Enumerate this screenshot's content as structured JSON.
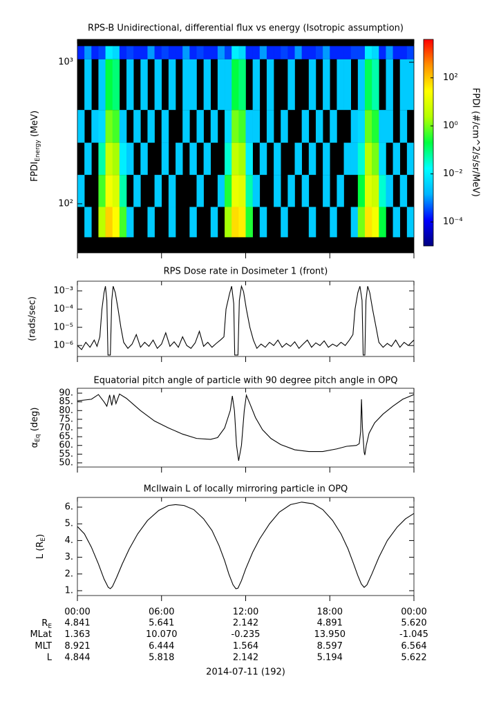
{
  "chart_data": [
    {
      "type": "heatmap",
      "title": "RPS-B  Unidirectional, differential flux vs energy (Isotropic assumption)",
      "ylabel": [
        "FPDI",
        "Energy",
        " (MeV)"
      ],
      "xlim": [
        0,
        24
      ],
      "xticks": [
        0,
        6,
        12,
        18,
        24
      ],
      "ylog": true,
      "ylim": [
        45,
        1450
      ],
      "yticks": [
        {
          "value": 100,
          "label": "10²"
        },
        {
          "value": 1000,
          "label": "10³"
        }
      ],
      "xbins": [
        0,
        0.5,
        1,
        1.5,
        2,
        2.5,
        3,
        3.5,
        4,
        4.5,
        5,
        5.5,
        6,
        6.5,
        7,
        7.5,
        8,
        8.5,
        9,
        9.5,
        10,
        10.5,
        11,
        11.5,
        12,
        12.5,
        13,
        13.5,
        14,
        14.5,
        15,
        15.5,
        16,
        16.5,
        17,
        17.5,
        18,
        18.5,
        19,
        19.5,
        20,
        20.5,
        21,
        21.5,
        22,
        22.5,
        23,
        23.5,
        24
      ],
      "ybins": [
        58,
        95,
        160,
        270,
        460,
        1050,
        1300
      ],
      "z": [
        [
          null,
          0.003,
          null,
          3,
          80,
          30,
          0.5,
          0.003,
          null,
          null,
          0.003,
          null,
          null,
          0.003,
          null,
          null,
          0.003,
          null,
          null,
          0.003,
          null,
          2,
          60,
          40,
          0.3,
          null,
          0.003,
          null,
          null,
          0.003,
          null,
          null,
          null,
          0.003,
          null,
          null,
          0.003,
          null,
          null,
          0.003,
          1,
          50,
          20,
          0.2,
          null,
          0.003,
          null,
          0.003
        ],
        [
          0.003,
          null,
          null,
          0.5,
          20,
          8,
          0.05,
          null,
          0.003,
          null,
          null,
          0.003,
          null,
          0.003,
          null,
          null,
          null,
          0.003,
          null,
          null,
          0.003,
          0.3,
          15,
          10,
          0.05,
          0.003,
          null,
          null,
          0.003,
          null,
          0.003,
          null,
          0.003,
          null,
          null,
          0.003,
          null,
          0.003,
          null,
          null,
          0.2,
          10,
          5,
          0.03,
          0.003,
          null,
          0.003,
          null
        ],
        [
          null,
          0.003,
          null,
          0.05,
          5,
          2,
          0.01,
          0.003,
          null,
          0.003,
          null,
          null,
          0.003,
          null,
          0.003,
          null,
          0.003,
          null,
          0.003,
          null,
          null,
          0.03,
          4,
          2,
          0.01,
          null,
          0.003,
          null,
          0.003,
          null,
          null,
          0.003,
          null,
          0.003,
          null,
          0.003,
          null,
          null,
          0.003,
          0.003,
          0.03,
          3,
          1,
          0.005,
          null,
          0.003,
          null,
          0.003
        ],
        [
          0.003,
          null,
          0.003,
          0.005,
          1,
          0.5,
          0.003,
          null,
          0.003,
          null,
          0.003,
          null,
          0.003,
          null,
          null,
          0.003,
          null,
          0.003,
          null,
          0.003,
          null,
          0.005,
          1,
          0.5,
          0.003,
          0.003,
          null,
          0.003,
          null,
          0.003,
          null,
          null,
          0.003,
          null,
          0.003,
          null,
          0.003,
          null,
          null,
          0.003,
          0.005,
          0.8,
          0.3,
          0.003,
          0.003,
          null,
          0.003,
          null
        ],
        [
          null,
          0.003,
          null,
          0.003,
          0.2,
          0.1,
          null,
          0.003,
          null,
          0.003,
          null,
          0.003,
          null,
          0.003,
          null,
          0.003,
          0.003,
          null,
          0.003,
          null,
          0.003,
          0.003,
          0.2,
          0.1,
          null,
          0.003,
          null,
          0.003,
          null,
          null,
          0.003,
          null,
          null,
          0.003,
          null,
          0.003,
          null,
          0.003,
          0.003,
          null,
          0.003,
          0.15,
          0.05,
          null,
          0.003,
          null,
          0.003,
          0.003
        ],
        [
          0.0002,
          0.001,
          0.0002,
          0.0003,
          0.01,
          0.005,
          0.0002,
          0.0003,
          0.0002,
          0.0002,
          0.001,
          0.0002,
          0.0003,
          0.0002,
          0.0002,
          0.001,
          0.0002,
          0.0003,
          0.0002,
          0.0002,
          0.001,
          0.0003,
          0.01,
          0.005,
          0.0002,
          0.0002,
          0.001,
          0.0002,
          0.0002,
          0.0003,
          0.0002,
          0.001,
          0.0002,
          0.0002,
          0.0003,
          0.001,
          0.0002,
          0.0002,
          0.0002,
          0.0003,
          0.0003,
          0.01,
          0.005,
          0.0002,
          0.001,
          0.0002,
          0.0002,
          0.0003
        ]
      ],
      "zlim": [
        1e-05,
        4000
      ],
      "zticks": [
        {
          "value": 0.0001,
          "label": "10⁻⁴"
        },
        {
          "value": 0.01,
          "label": "10⁻²"
        },
        {
          "value": 1,
          "label": "10⁰"
        },
        {
          "value": 100,
          "label": "10²"
        }
      ],
      "zlabel": "FPDI (#/cm^2/s/sr/MeV)",
      "colormap": [
        "#00007f",
        "#0000ff",
        "#00b4ff",
        "#00ffff",
        "#00ff40",
        "#b4ff00",
        "#ffff00",
        "#ff9000",
        "#ff0000"
      ],
      "background": "#000000"
    },
    {
      "type": "line",
      "title": "RPS  Dose rate in Dosimeter 1 (front)",
      "ylabel": "(rads/sec)",
      "xlim": [
        0,
        24
      ],
      "xticks": [
        0,
        6,
        12,
        18,
        24
      ],
      "ylog": true,
      "ylim": [
        2.5e-07,
        0.0034
      ],
      "yticks": [
        {
          "value": 1e-06,
          "label": "10⁻⁶"
        },
        {
          "value": 1e-05,
          "label": "10⁻⁵"
        },
        {
          "value": 0.0001,
          "label": "10⁻⁴"
        },
        {
          "value": 0.001,
          "label": "10⁻³"
        }
      ],
      "color": "#000000",
      "x": [
        0,
        0.3,
        0.6,
        0.9,
        1.2,
        1.4,
        1.6,
        1.75,
        1.9,
        2.0,
        2.1,
        2.18,
        2.35,
        2.45,
        2.55,
        2.7,
        2.9,
        3.1,
        3.3,
        3.6,
        3.9,
        4.2,
        4.5,
        4.8,
        5.1,
        5.4,
        5.7,
        6.0,
        6.3,
        6.6,
        6.9,
        7.2,
        7.5,
        7.8,
        8.1,
        8.4,
        8.7,
        9.0,
        9.3,
        9.6,
        9.9,
        10.2,
        10.45,
        10.6,
        10.85,
        11.0,
        11.15,
        11.22,
        11.45,
        11.55,
        11.7,
        11.85,
        12.05,
        12.3,
        12.55,
        12.8,
        13.1,
        13.4,
        13.7,
        14.0,
        14.3,
        14.6,
        14.9,
        15.2,
        15.5,
        15.8,
        16.1,
        16.4,
        16.7,
        17.0,
        17.3,
        17.6,
        17.9,
        18.2,
        18.5,
        18.8,
        19.1,
        19.4,
        19.65,
        19.8,
        20.0,
        20.15,
        20.3,
        20.38,
        20.5,
        20.58,
        20.7,
        20.85,
        21.05,
        21.3,
        21.5,
        21.8,
        22.1,
        22.4,
        22.7,
        23.0,
        23.3,
        23.6,
        24.0
      ],
      "values": [
        1e-06,
        6e-07,
        1.5e-06,
        8e-07,
        2e-06,
        9e-07,
        3e-06,
        0.0001,
        0.0008,
        0.0018,
        0.0003,
        3e-07,
        3e-07,
        0.0003,
        0.0018,
        0.0008,
        0.0001,
        1e-05,
        1.5e-06,
        7e-07,
        1.2e-06,
        4e-06,
        8e-07,
        1.5e-06,
        9e-07,
        2e-06,
        7e-07,
        1.2e-06,
        5e-06,
        9e-07,
        1.6e-06,
        8e-07,
        3e-06,
        1e-06,
        7e-07,
        1.4e-06,
        6e-06,
        9e-07,
        1.5e-06,
        8e-07,
        1.3e-06,
        2e-06,
        3e-06,
        0.0001,
        0.0007,
        0.0018,
        0.0002,
        3e-07,
        3e-07,
        0.0003,
        0.0018,
        0.0009,
        0.0001,
        1e-05,
        2e-06,
        7e-07,
        1.2e-06,
        8e-07,
        1.5e-06,
        1e-06,
        2e-06,
        8e-07,
        1.3e-06,
        9e-07,
        1.6e-06,
        7e-07,
        1.2e-06,
        2e-06,
        8e-07,
        1.4e-06,
        1e-06,
        1.8e-06,
        8e-07,
        1.2e-06,
        9e-07,
        1.5e-06,
        1e-06,
        2e-06,
        4e-06,
        0.0001,
        0.0008,
        0.0018,
        0.0003,
        3e-07,
        3e-07,
        0.0003,
        0.0018,
        0.0008,
        0.0001,
        1e-05,
        1.5e-06,
        8e-07,
        1.3e-06,
        9e-07,
        2e-06,
        8e-07,
        1.5e-06,
        1e-06,
        2e-06
      ]
    },
    {
      "type": "line",
      "title": "Equatorial pitch angle of particle with 90 degree pitch angle in OPQ",
      "ylabel": [
        "α",
        "Eq",
        " (deg)"
      ],
      "xlim": [
        0,
        24
      ],
      "xticks": [
        0,
        6,
        12,
        18,
        24
      ],
      "ylim": [
        47.6,
        92.8
      ],
      "yticks": [
        {
          "value": 50,
          "label": "50."
        },
        {
          "value": 55,
          "label": "55."
        },
        {
          "value": 60,
          "label": "60."
        },
        {
          "value": 65,
          "label": "65."
        },
        {
          "value": 70,
          "label": "70."
        },
        {
          "value": 75,
          "label": "75."
        },
        {
          "value": 80,
          "label": "80."
        },
        {
          "value": 85,
          "label": "85."
        },
        {
          "value": 90,
          "label": "90."
        }
      ],
      "color": "#000000",
      "x": [
        0,
        1.0,
        1.5,
        1.9,
        2.1,
        2.3,
        2.45,
        2.6,
        2.75,
        3.0,
        3.5,
        4.5,
        5.5,
        6.5,
        7.5,
        8.5,
        9.5,
        10.0,
        10.5,
        10.9,
        11.05,
        11.2,
        11.35,
        11.5,
        11.7,
        11.9,
        12.05,
        12.3,
        12.7,
        13.2,
        13.8,
        14.5,
        15.5,
        16.5,
        17.5,
        18.5,
        19.2,
        19.9,
        20.1,
        20.2,
        20.26,
        20.33,
        20.45,
        20.5,
        20.6,
        20.8,
        21.2,
        21.8,
        22.5,
        23.2,
        24
      ],
      "values": [
        85.6,
        86.5,
        89.2,
        85,
        82.5,
        89,
        83,
        89,
        84,
        89.5,
        87,
        80,
        74,
        70,
        66.5,
        64,
        63.5,
        64.5,
        70,
        80,
        88.4,
        80,
        60,
        51.2,
        60,
        80,
        88.8,
        84,
        76,
        69,
        64,
        60.5,
        57.5,
        56.5,
        56.5,
        58,
        59.5,
        60,
        61,
        68,
        86.5,
        70,
        56,
        54.5,
        60,
        67,
        73,
        78,
        82.5,
        86.5,
        89.2
      ]
    },
    {
      "type": "line",
      "title": "McIlwain L of locally mirroring particle in OPQ",
      "ylabel": [
        "L (R",
        "E",
        ")"
      ],
      "xlim": [
        0,
        24
      ],
      "xticks": [
        {
          "value": 0,
          "label": "00:00"
        },
        {
          "value": 6,
          "label": "06:00"
        },
        {
          "value": 12,
          "label": "12:00"
        },
        {
          "value": 18,
          "label": "18:00"
        },
        {
          "value": 24,
          "label": "00:00"
        }
      ],
      "ylim": [
        0.71,
        6.58
      ],
      "yticks": [
        {
          "value": 1,
          "label": "1."
        },
        {
          "value": 2,
          "label": "2."
        },
        {
          "value": 3,
          "label": "3."
        },
        {
          "value": 4,
          "label": "4."
        },
        {
          "value": 5,
          "label": "5."
        },
        {
          "value": 6,
          "label": "6."
        }
      ],
      "color": "#000000",
      "x": [
        0,
        0.5,
        1.0,
        1.5,
        1.9,
        2.2,
        2.35,
        2.5,
        2.8,
        3.2,
        3.7,
        4.3,
        5.0,
        5.8,
        6.5,
        7.0,
        7.6,
        8.3,
        9.0,
        9.6,
        10.1,
        10.5,
        10.8,
        11.1,
        11.3,
        11.45,
        11.7,
        12.0,
        12.5,
        13.0,
        13.7,
        14.4,
        15.2,
        16.0,
        16.8,
        17.5,
        18.2,
        18.8,
        19.3,
        19.7,
        20.0,
        20.25,
        20.45,
        20.65,
        21.0,
        21.5,
        22.1,
        22.8,
        23.4,
        24.0
      ],
      "values": [
        4.84,
        4.4,
        3.6,
        2.6,
        1.7,
        1.2,
        1.12,
        1.25,
        1.8,
        2.6,
        3.5,
        4.4,
        5.2,
        5.8,
        6.1,
        6.15,
        6.1,
        5.85,
        5.3,
        4.6,
        3.7,
        2.8,
        2.0,
        1.35,
        1.12,
        1.15,
        1.6,
        2.3,
        3.3,
        4.1,
        5.0,
        5.7,
        6.15,
        6.3,
        6.2,
        5.85,
        5.2,
        4.4,
        3.5,
        2.6,
        1.9,
        1.4,
        1.2,
        1.35,
        2.0,
        3.0,
        4.0,
        4.8,
        5.3,
        5.62
      ]
    }
  ],
  "ephemeris": {
    "rows": [
      {
        "label": [
          "R",
          "E"
        ],
        "values": [
          "4.841",
          "5.641",
          "2.142",
          "4.891",
          "5.620"
        ]
      },
      {
        "label": "MLat",
        "values": [
          "1.363",
          "10.070",
          "-0.235",
          "13.950",
          "-1.045"
        ]
      },
      {
        "label": "MLT",
        "values": [
          "8.921",
          "6.444",
          "1.564",
          "8.597",
          "6.564"
        ]
      },
      {
        "label": "L",
        "values": [
          "4.844",
          "5.818",
          "2.142",
          "5.194",
          "5.622"
        ]
      }
    ],
    "date": "2014-07-11 (192)"
  }
}
